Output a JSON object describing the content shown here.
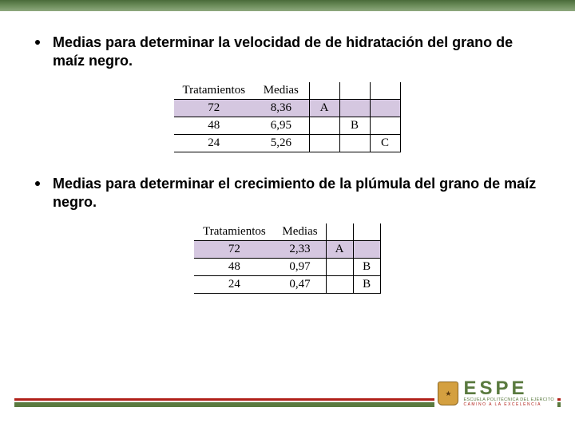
{
  "bullets": {
    "b1": "Medias para determinar la velocidad de  de hidratación  del grano de maíz negro.",
    "b2": "Medias para determinar el crecimiento de la plúmula del grano de maíz negro."
  },
  "table1": {
    "headers": {
      "c1": "Tratamientos",
      "c2": "Medias"
    },
    "rows": [
      {
        "trat": "72",
        "media": "8,36",
        "g1": "A",
        "g2": "",
        "g3": "",
        "highlight": true
      },
      {
        "trat": "48",
        "media": "6,95",
        "g1": "",
        "g2": "B",
        "g3": "",
        "highlight": false
      },
      {
        "trat": "24",
        "media": "5,26",
        "g1": "",
        "g2": "",
        "g3": "C",
        "highlight": false
      }
    ]
  },
  "table2": {
    "headers": {
      "c1": "Tratamientos",
      "c2": "Medias"
    },
    "rows": [
      {
        "trat": "72",
        "media": "2,33",
        "g1": "A",
        "g2": "",
        "highlight": true
      },
      {
        "trat": "48",
        "media": "0,97",
        "g1": "",
        "g2": "B",
        "highlight": false
      },
      {
        "trat": "24",
        "media": "0,47",
        "g1": "",
        "g2": "B",
        "highlight": false
      }
    ]
  },
  "logo": {
    "main": "ESPE",
    "sub1": "ESCUELA POLITÉCNICA DEL EJÉRCITO",
    "sub2": "CAMINO A LA EXCELENCIA"
  },
  "colors": {
    "topbar_from": "#4a6b3a",
    "green": "#5a7a3f",
    "red": "#b02018",
    "highlight": "#d5c7e0"
  }
}
